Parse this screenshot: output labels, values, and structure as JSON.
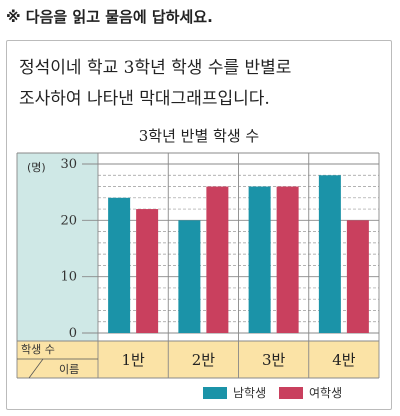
{
  "instruction": "※ 다음을 읽고 물음에 답하세요.",
  "question": {
    "line1": "정석이네 학교 3학년 학생 수를 반별로",
    "line2": "조사하여 나타낸 막대그래프입니다."
  },
  "chart_data": {
    "type": "bar",
    "title": "3학년 반별 학생 수",
    "y_unit_label": "(명)",
    "row_header_top": "학생 수",
    "row_header_bottom": "이름",
    "categories": [
      "1반",
      "2반",
      "3반",
      "4반"
    ],
    "series": [
      {
        "name": "남학생",
        "values": [
          24,
          20,
          26,
          28
        ],
        "color": "#1b93a8"
      },
      {
        "name": "여학생",
        "values": [
          22,
          26,
          26,
          20
        ],
        "color": "#c9405e"
      }
    ],
    "ylim": [
      0,
      30
    ],
    "y_ticks": [
      0,
      10,
      20,
      30
    ],
    "grid": true,
    "legend_position": "bottom-right",
    "colors": {
      "axis_panel": "#cfe8e6",
      "header_panel": "#fbe3a6",
      "grid_major": "#888888",
      "grid_minor": "#999999"
    }
  }
}
